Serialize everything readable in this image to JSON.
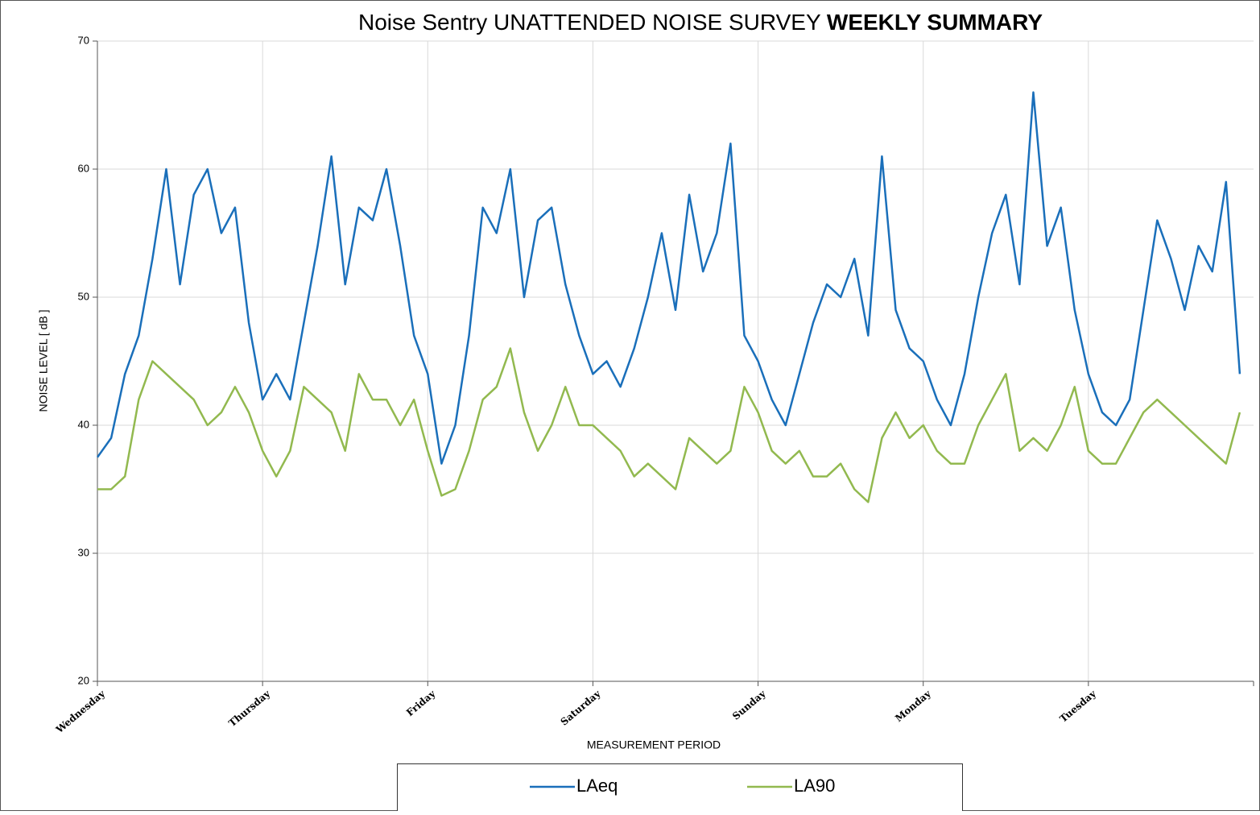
{
  "chart_data": {
    "type": "line",
    "title": [
      "Noise Sentry UNATTENDED NOISE SURVEY",
      "WEEKLY SUMMARY"
    ],
    "x_label": "MEASUREMENT PERIOD",
    "y_label": "NOISE LEVEL  [ dB ]",
    "categories": [
      "Wednesday",
      null,
      null,
      null,
      null,
      null,
      null,
      null,
      null,
      null,
      null,
      null,
      "Thursday",
      null,
      null,
      null,
      null,
      null,
      null,
      null,
      null,
      null,
      null,
      null,
      "Friday",
      null,
      null,
      null,
      null,
      null,
      null,
      null,
      null,
      null,
      null,
      null,
      "Saturday",
      null,
      null,
      null,
      null,
      null,
      null,
      null,
      null,
      null,
      null,
      null,
      "Sunday",
      null,
      null,
      null,
      null,
      null,
      null,
      null,
      null,
      null,
      null,
      null,
      "Monday",
      null,
      null,
      null,
      null,
      null,
      null,
      null,
      null,
      null,
      null,
      null,
      "Tuesday",
      null,
      null,
      null,
      null,
      null,
      null,
      null,
      null,
      null,
      null,
      null
    ],
    "series": [
      {
        "name": "LAeq",
        "color": "#1a6fba",
        "values": [
          37.5,
          39,
          44,
          47,
          53,
          60,
          51,
          58,
          60,
          55,
          57,
          48,
          42,
          44,
          42,
          48,
          54,
          61,
          51,
          57,
          56,
          60,
          54,
          47,
          44,
          37,
          40,
          47,
          57,
          55,
          60,
          50,
          56,
          57,
          51,
          47,
          44,
          45,
          43,
          46,
          50,
          55,
          49,
          58,
          52,
          55,
          62,
          47,
          45,
          42,
          40,
          44,
          48,
          51,
          50,
          53,
          47,
          61,
          49,
          46,
          45,
          42,
          40,
          44,
          50,
          55,
          58,
          51,
          66,
          54,
          57,
          49,
          44,
          41,
          40,
          42,
          49,
          56,
          53,
          49,
          54,
          52,
          59,
          44
        ]
      },
      {
        "name": "LA90",
        "color": "#92b94f",
        "values": [
          35,
          35,
          36,
          42,
          45,
          44,
          43,
          42,
          40,
          41,
          43,
          41,
          38,
          36,
          38,
          43,
          42,
          41,
          38,
          44,
          42,
          42,
          40,
          42,
          38,
          34.5,
          35,
          38,
          42,
          43,
          46,
          41,
          38,
          40,
          43,
          40,
          40,
          39,
          38,
          36,
          37,
          36,
          35,
          39,
          38,
          37,
          38,
          43,
          41,
          38,
          37,
          38,
          36,
          36,
          37,
          35,
          34,
          39,
          41,
          39,
          40,
          38,
          37,
          37,
          40,
          42,
          44,
          38,
          39,
          38,
          40,
          43,
          38,
          37,
          37,
          39,
          41,
          42,
          41,
          40,
          39,
          38,
          37,
          41
        ]
      }
    ],
    "ylim": [
      20,
      70
    ],
    "yticks": [
      20,
      30,
      40,
      50,
      60,
      70
    ],
    "grid": true
  }
}
